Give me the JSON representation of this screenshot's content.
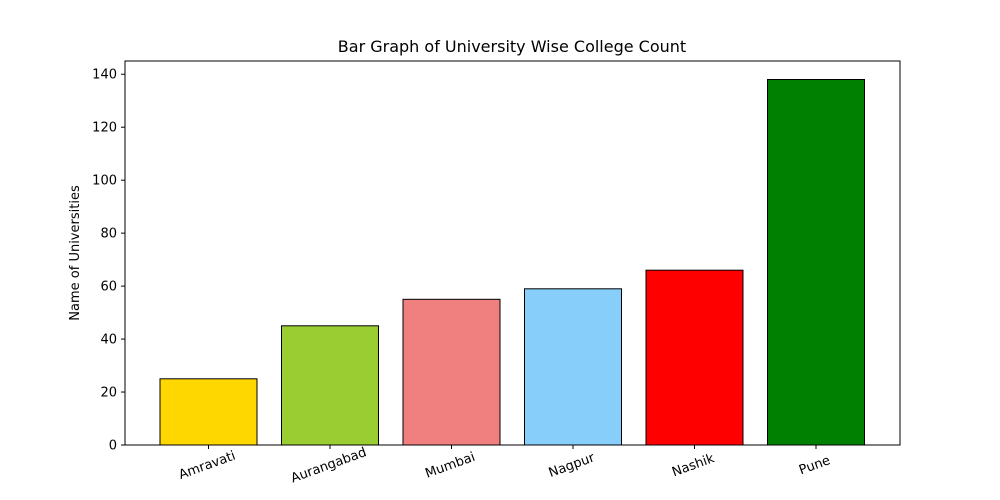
{
  "chart_data": {
    "type": "bar",
    "title": "Bar Graph of University Wise College Count",
    "xlabel": "",
    "ylabel": "Name of Universities",
    "categories": [
      "Amravati",
      "Aurangabad",
      "Mumbai",
      "Nagpur",
      "Nashik",
      "Pune"
    ],
    "values": [
      25,
      45,
      55,
      59,
      66,
      138
    ],
    "colors": [
      "#ffd700",
      "#9acd32",
      "#f08080",
      "#87cefa",
      "#ff0000",
      "#008000"
    ],
    "ylim": [
      0,
      145
    ],
    "yticks": [
      0,
      20,
      40,
      60,
      80,
      100,
      120,
      140
    ],
    "grid": false,
    "legend": "none"
  }
}
